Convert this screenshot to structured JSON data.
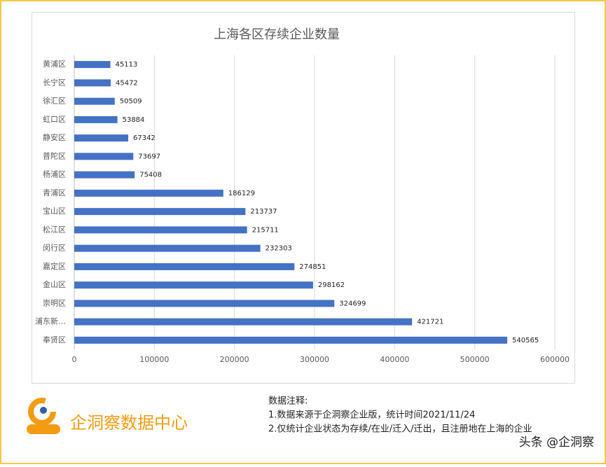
{
  "chart_data": {
    "type": "bar",
    "orientation": "horizontal",
    "title": "上海各区存续企业数量",
    "categories": [
      "黄浦区",
      "长宁区",
      "徐汇区",
      "虹口区",
      "静安区",
      "普陀区",
      "杨浦区",
      "青浦区",
      "宝山区",
      "松江区",
      "闵行区",
      "嘉定区",
      "金山区",
      "崇明区",
      "浦东新…",
      "奉贤区"
    ],
    "values": [
      45113,
      45472,
      50509,
      53884,
      67342,
      73697,
      75408,
      186129,
      213737,
      215711,
      232303,
      274851,
      298162,
      324699,
      421721,
      540565
    ],
    "color": "#4472c4",
    "xlim": [
      0,
      600000
    ],
    "xticks": [
      0,
      100000,
      200000,
      300000,
      400000,
      500000,
      600000
    ],
    "grid": true
  },
  "footer": {
    "brand": "企洞察数据中心",
    "notes_title": "数据注释:",
    "notes": [
      "1.数据来源于企洞察企业版，统计时间2021/11/24",
      "2.仅统计企业状态为存续/在业/迁入/迁出，且注册地在上海的企业"
    ],
    "credit": "头条 @企洞察"
  }
}
